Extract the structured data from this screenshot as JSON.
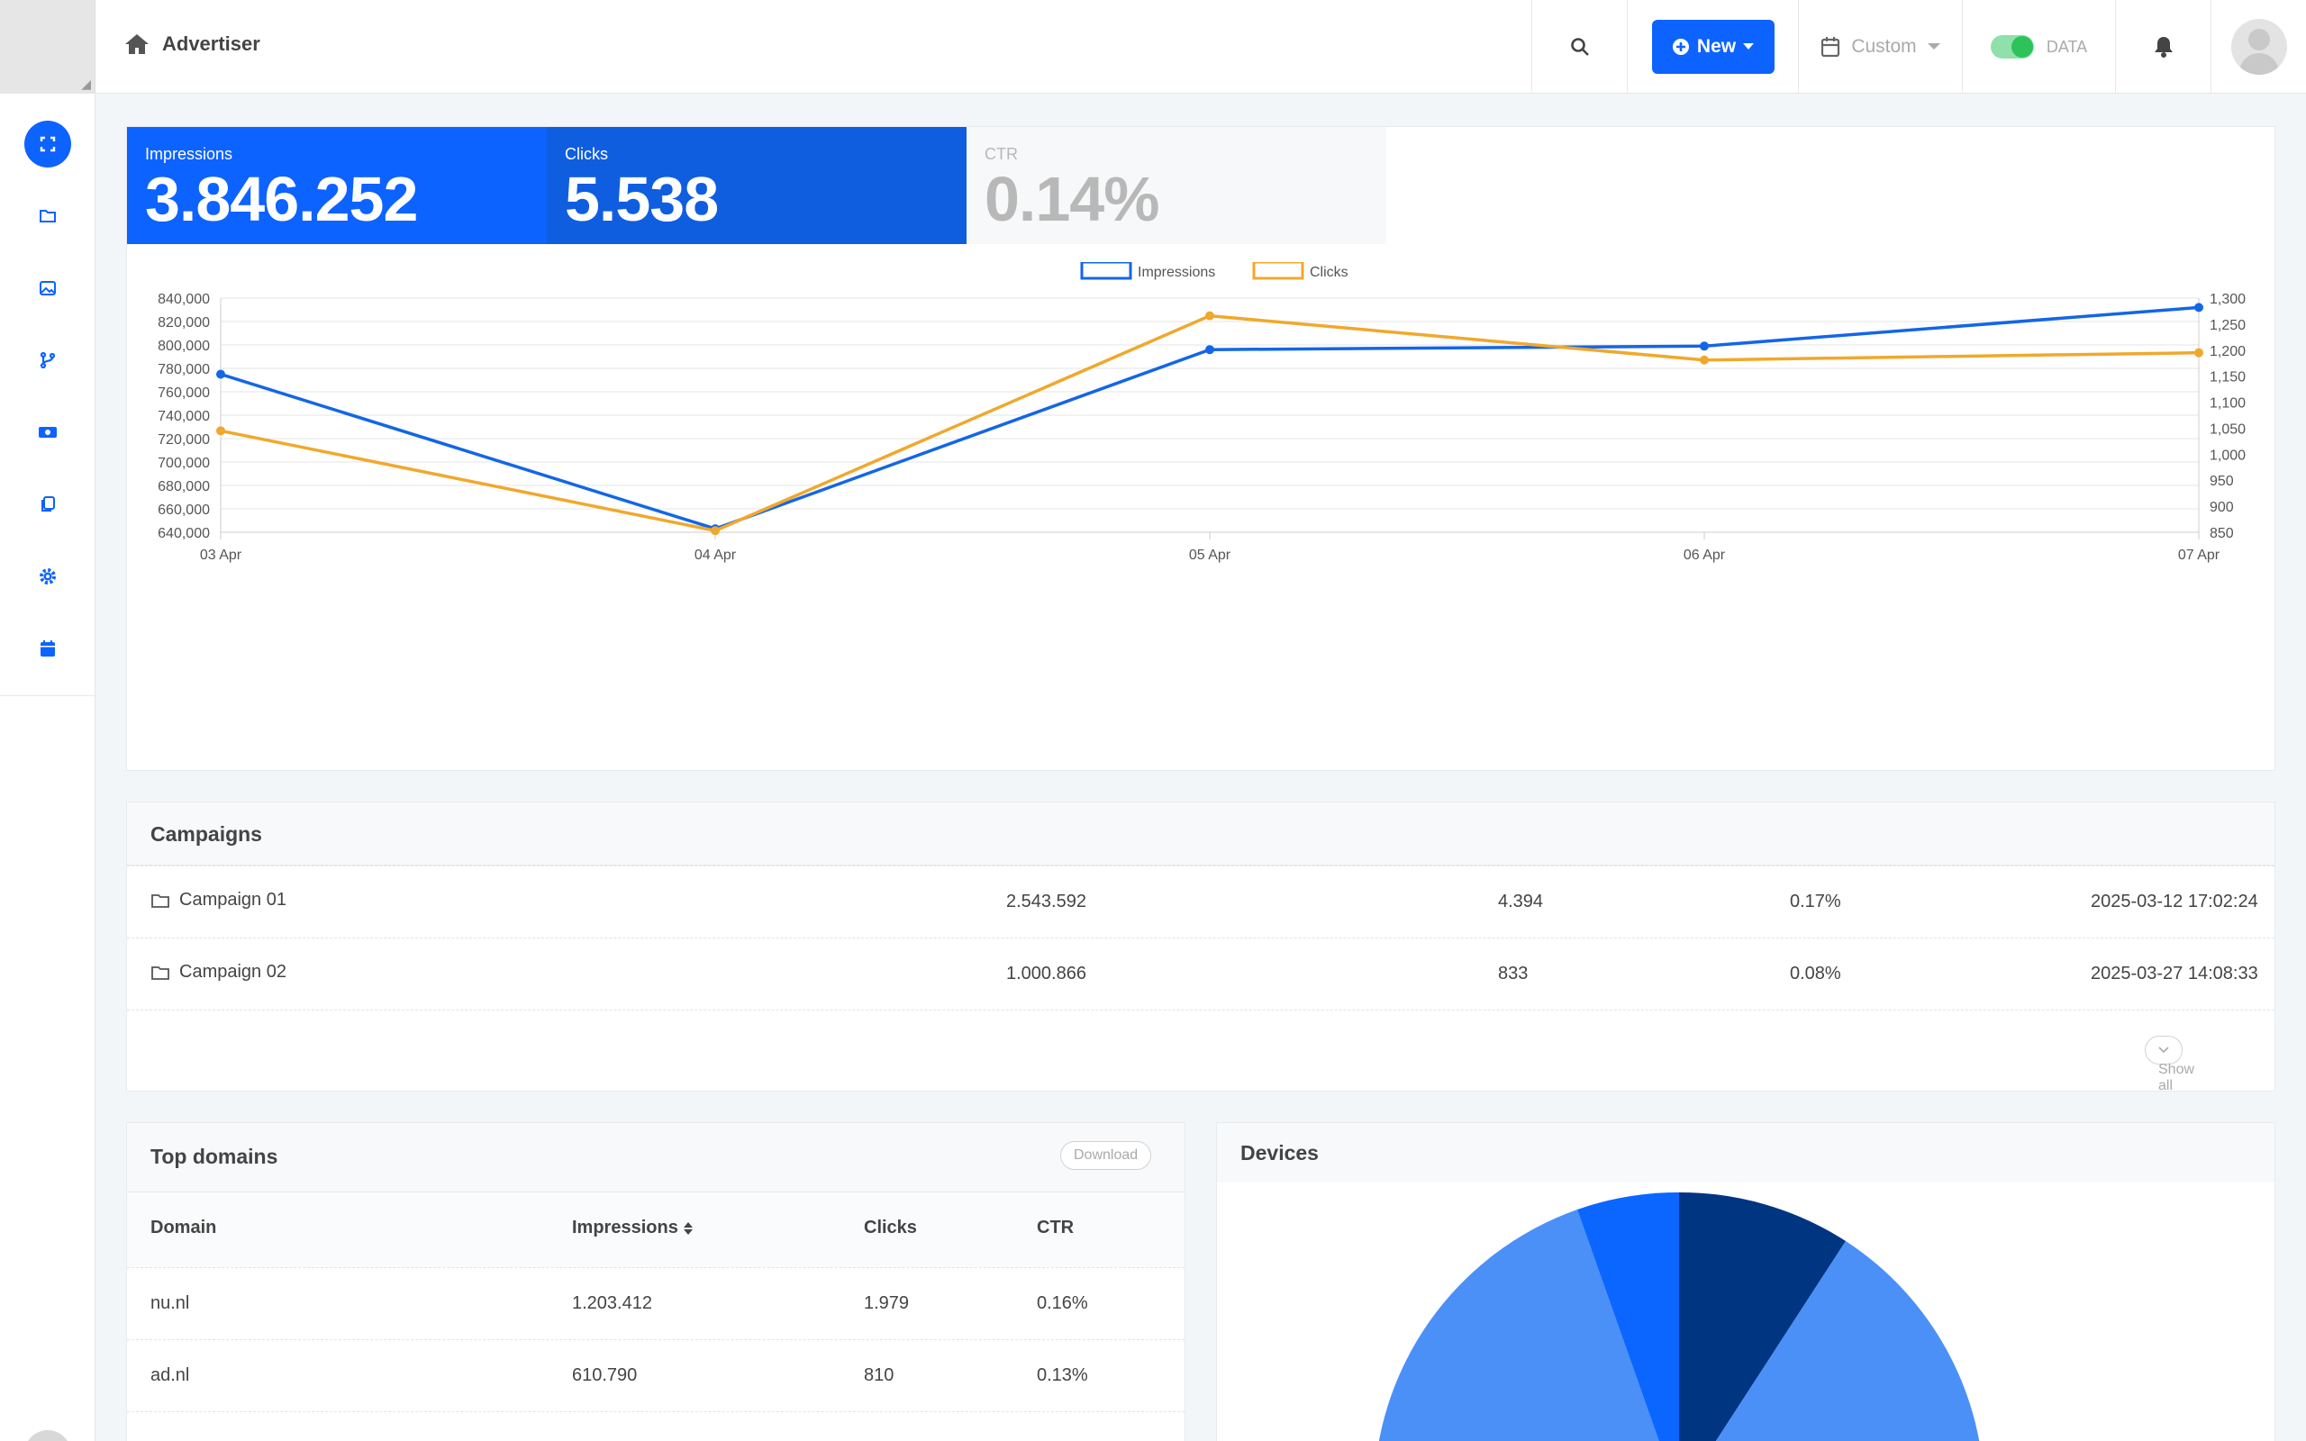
{
  "header": {
    "title": "Advertiser",
    "new_label": "New",
    "date_label": "Custom",
    "toggle_label": "DATA"
  },
  "stats": [
    {
      "label": "Impressions",
      "value": "3.846.252"
    },
    {
      "label": "Clicks",
      "value": "5.538"
    },
    {
      "label": "CTR",
      "value": "0.14%"
    }
  ],
  "colors": {
    "accent": "#0d63ff",
    "clicks_tile": "#0f5ee0",
    "impressions_line": "#1366e6",
    "clicks_line": "#f0a82c"
  },
  "chart_data": {
    "type": "line",
    "x": [
      "03 Apr",
      "04 Apr",
      "05 Apr",
      "06 Apr",
      "07 Apr"
    ],
    "series": [
      {
        "name": "Impressions",
        "axis": "left",
        "values": [
          775000,
          643000,
          796000,
          799000,
          832000
        ]
      },
      {
        "name": "Clicks",
        "axis": "right",
        "values": [
          1045,
          853,
          1266,
          1181,
          1195
        ]
      }
    ],
    "left_axis": {
      "min": 640000,
      "max": 840000,
      "step": 20000,
      "ticks": [
        "840,000",
        "820,000",
        "800,000",
        "780,000",
        "760,000",
        "740,000",
        "720,000",
        "700,000",
        "680,000",
        "660,000",
        "640,000"
      ]
    },
    "right_axis": {
      "min": 850,
      "max": 1300,
      "step": 50,
      "ticks": [
        "1,300",
        "1,250",
        "1,200",
        "1,150",
        "1,100",
        "1,050",
        "1,000",
        "950",
        "900",
        "850"
      ]
    },
    "legend_position": "top-center",
    "grid": true
  },
  "campaigns": {
    "title": "Campaigns",
    "rows": [
      {
        "name": "Campaign 01",
        "impressions": "2.543.592",
        "clicks": "4.394",
        "ctr": "0.17%",
        "date": "2025-03-12 17:02:24"
      },
      {
        "name": "Campaign 02",
        "impressions": "1.000.866",
        "clicks": "833",
        "ctr": "0.08%",
        "date": "2025-03-27 14:08:33"
      }
    ],
    "show_all": "Show all"
  },
  "top_domains": {
    "title": "Top domains",
    "download": "Download",
    "columns": [
      "Domain",
      "Impressions",
      "Clicks",
      "CTR"
    ],
    "rows": [
      {
        "domain": "nu.nl",
        "impressions": "1.203.412",
        "clicks": "1.979",
        "ctr": "0.16%"
      },
      {
        "domain": "ad.nl",
        "impressions": "610.790",
        "clicks": "810",
        "ctr": "0.13%"
      }
    ]
  },
  "devices": {
    "title": "Devices",
    "slice_colors": [
      "#003582",
      "#4a90f7",
      "#0a66ff"
    ]
  }
}
